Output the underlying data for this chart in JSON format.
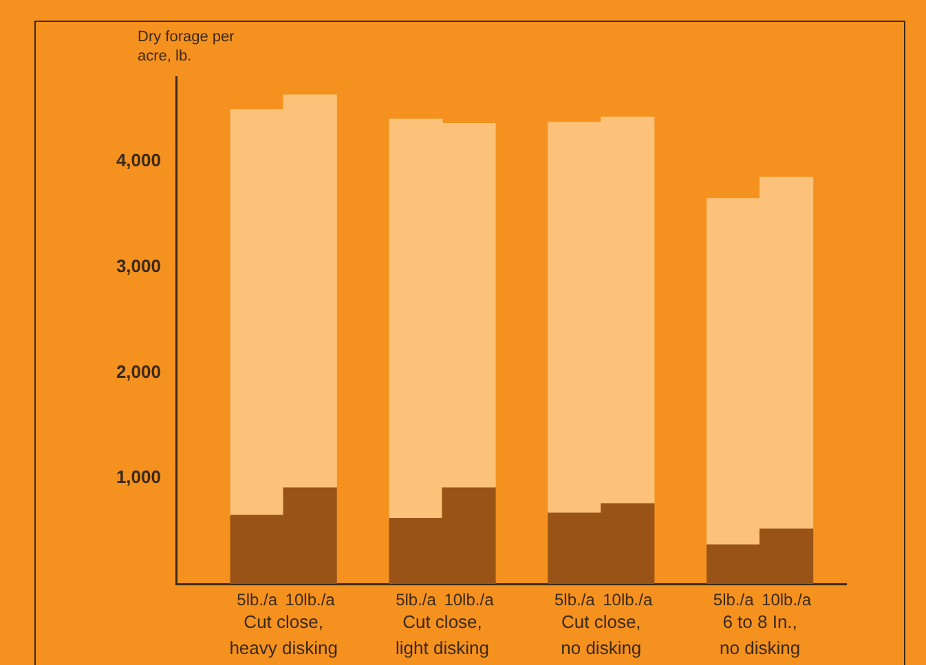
{
  "chart_data": {
    "type": "bar",
    "stacked": true,
    "ylabel": "Dry forage per acre, lb.",
    "categories": [
      "5lb./a",
      "10lb./a",
      "5lb./a",
      "10lb./a",
      "5lb./a",
      "10lb./a",
      "5lb./a",
      "10lb./a"
    ],
    "series": [
      {
        "color": "#9a5316",
        "values": [
          650,
          910,
          620,
          910,
          670,
          760,
          370,
          520
        ]
      },
      {
        "color": "#fcc27a",
        "values": [
          3840,
          3720,
          3780,
          3450,
          3700,
          3660,
          3280,
          3330
        ]
      }
    ],
    "annotations": [
      "Cut close, heavy disking",
      "Cut close, light disking",
      "Cut close, no disking",
      "6 to 8 In., no disking"
    ],
    "ylim": [
      0,
      4800
    ],
    "yticks": [
      {
        "value": 1000,
        "label": "1,000"
      },
      {
        "value": 2000,
        "label": "2,000"
      },
      {
        "value": 3000,
        "label": "3,000"
      },
      {
        "value": 4000,
        "label": "4,000"
      }
    ],
    "grid": false,
    "legend": false
  }
}
